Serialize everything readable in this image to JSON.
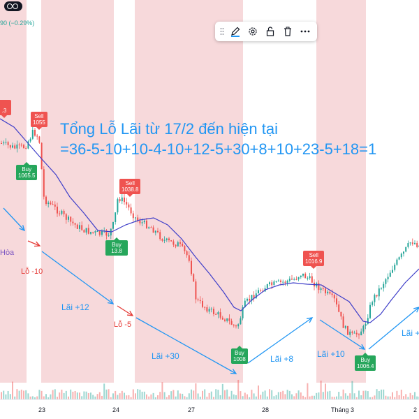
{
  "header": {
    "change_text": "90 (−0.29%)"
  },
  "toolbar": {
    "items": [
      "drag-handle-icon",
      "pencil-icon",
      "gear-icon",
      "lock-icon",
      "trash-icon",
      "more-icon"
    ]
  },
  "summary": {
    "line1": "Tổng Lỗ Lãi từ 17/2 đến hiện tại",
    "line2": "=36-5-10+10-4-10+12-5+30+8+10+23-5+18=1"
  },
  "signals": [
    {
      "type": "Sell",
      "value": "1055"
    },
    {
      "type": "Buy",
      "value": "1065.5"
    },
    {
      "type": "Sell",
      "value": "1038.8"
    },
    {
      "type": "Buy",
      "value": "13.8"
    },
    {
      "type": "Buy",
      "value": "1008"
    },
    {
      "type": "Sell",
      "value": "1016.9"
    },
    {
      "type": "Buy",
      "value": "1006.4"
    },
    {
      "type": "",
      "value": ".3"
    }
  ],
  "annotations": {
    "loss_10": "Lỗ -10",
    "profit_12": "Lãi +12",
    "loss_5": "Lỗ -5",
    "profit_30": "Lãi +30",
    "profit_8": "Lãi +8",
    "profit_10": "Lãi +10",
    "profit_cut": "Lãi +",
    "hoa": "Hòa"
  },
  "x_axis": {
    "labels": [
      "23",
      "24",
      "27",
      "28",
      "Tháng 3",
      "2"
    ]
  },
  "colors": {
    "shade": "#f3c5c7",
    "up": "#26a69a",
    "down": "#ef5350",
    "ma": "#3f3fc9",
    "arrow_blue": "#2196f3",
    "arrow_red": "#e53935"
  }
}
